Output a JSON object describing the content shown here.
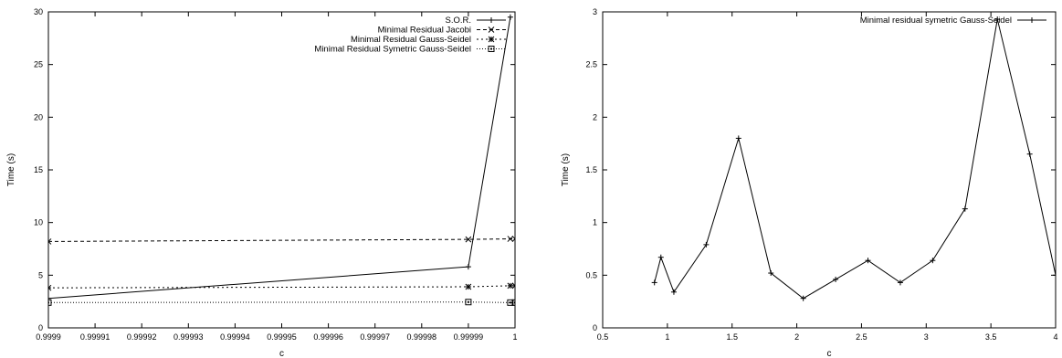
{
  "chart_data": [
    {
      "type": "line",
      "xlabel": "c",
      "ylabel": "Time (s)",
      "xlim": [
        0.9999,
        1.0
      ],
      "ylim": [
        0,
        30
      ],
      "xticks": [
        "0.9999",
        "0.99991",
        "0.99992",
        "0.99993",
        "0.99994",
        "0.99995",
        "0.99996",
        "0.99997",
        "0.99998",
        "0.99999",
        "1"
      ],
      "yticks": [
        "0",
        "5",
        "10",
        "15",
        "20",
        "25",
        "30"
      ],
      "legend_position": "top-right",
      "grid": false,
      "series": [
        {
          "name": "S.O.R.",
          "marker": "plus",
          "dash": "solid",
          "x": [
            0.9999,
            0.99999,
            0.999999
          ],
          "y": [
            2.8,
            5.8,
            29.5
          ]
        },
        {
          "name": "Minimal Residual Jacobi",
          "marker": "cross",
          "dash": "dashed",
          "x": [
            0.9999,
            0.99999,
            0.999999,
            1.0
          ],
          "y": [
            8.2,
            8.4,
            8.45,
            8.45
          ]
        },
        {
          "name": "Minimal Residual Gauss-Seidel",
          "marker": "star",
          "dash": "dotted",
          "x": [
            0.9999,
            0.99999,
            0.999999,
            1.0
          ],
          "y": [
            3.8,
            3.9,
            4.0,
            4.0
          ]
        },
        {
          "name": "Minimal Residual Symetric Gauss-Seidel",
          "marker": "box",
          "dash": "fine-dotted",
          "x": [
            0.9999,
            0.99999,
            0.999999,
            1.0
          ],
          "y": [
            2.4,
            2.45,
            2.4,
            2.4
          ]
        }
      ]
    },
    {
      "type": "line",
      "xlabel": "c",
      "ylabel": "Time (s)",
      "xlim": [
        0.5,
        4
      ],
      "ylim": [
        0,
        3
      ],
      "xticks": [
        "0.5",
        "1",
        "1.5",
        "2",
        "2.5",
        "3",
        "3.5",
        "4"
      ],
      "yticks": [
        "0",
        "0.5",
        "1",
        "1.5",
        "2",
        "2.5",
        "3"
      ],
      "legend_position": "top-right",
      "grid": false,
      "series": [
        {
          "name": "Minimal residual symetric Gauss-Seidel",
          "marker": "plus",
          "dash": "solid",
          "x": [
            0.9,
            0.95,
            1.05,
            1.3,
            1.55,
            1.8,
            2.05,
            2.3,
            2.55,
            2.8,
            3.05,
            3.3,
            3.55,
            3.8,
            4.0
          ],
          "y": [
            0.43,
            0.67,
            0.34,
            0.79,
            1.8,
            0.52,
            0.28,
            0.46,
            0.64,
            0.43,
            0.64,
            1.13,
            2.93,
            1.65,
            0.5
          ]
        }
      ]
    }
  ]
}
